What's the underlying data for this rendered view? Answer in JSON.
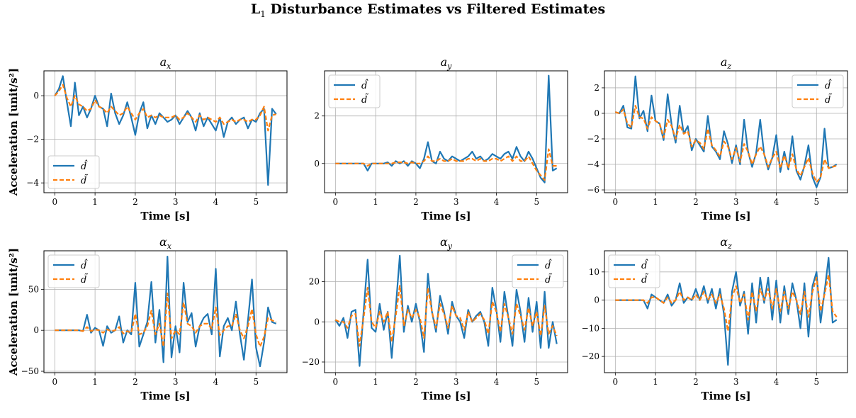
{
  "title": {
    "prefix": "L",
    "sub": "1",
    "rest": " Disturbance Estimates vs Filtered Estimates"
  },
  "colors": {
    "estimate": "#1f77b4",
    "filtered": "#ff7f0e",
    "grid": "#b0b0b0"
  },
  "chart_data": [
    {
      "type": "line",
      "title": {
        "base": "a",
        "sub": "x"
      },
      "xlabel": "Time [s]",
      "ylabel": "Acceleration [unit/s²]",
      "xlim": [
        -0.27,
        5.77
      ],
      "ylim": [
        -4.45,
        1.14
      ],
      "xticks": [
        0,
        1,
        2,
        3,
        4,
        5
      ],
      "yticks": [
        -4,
        -2,
        0
      ],
      "grid": true,
      "legend": "lower-left",
      "x_start": 0,
      "x_step": 0.1,
      "series": [
        {
          "name": "d̂",
          "style": "solid",
          "values": [
            0,
            0.3,
            0.9,
            -0.3,
            -1.4,
            0.6,
            -0.9,
            -0.5,
            -1.0,
            -0.6,
            0.0,
            -0.5,
            -0.6,
            -1.4,
            0.1,
            -0.8,
            -1.3,
            -0.9,
            -0.3,
            -1.0,
            -1.8,
            -0.8,
            -0.3,
            -1.5,
            -0.9,
            -1.3,
            -0.8,
            -1.0,
            -1.2,
            -1.1,
            -0.9,
            -1.3,
            -1.0,
            -0.7,
            -1.0,
            -1.6,
            -0.8,
            -1.4,
            -1.0,
            -1.3,
            -1.6,
            -1.0,
            -1.9,
            -1.2,
            -1.0,
            -1.3,
            -1.1,
            -1.0,
            -1.5,
            -1.1,
            -1.2,
            -0.8,
            -0.6,
            -4.1,
            -0.6,
            -0.85
          ]
        },
        {
          "name": "d̃",
          "style": "dashed",
          "values": [
            0,
            0.2,
            0.5,
            -0.1,
            -0.5,
            0.0,
            -0.4,
            -0.5,
            -0.7,
            -0.6,
            -0.2,
            -0.5,
            -0.6,
            -0.8,
            -0.5,
            -0.7,
            -0.9,
            -0.8,
            -0.5,
            -0.8,
            -1.1,
            -0.8,
            -0.6,
            -1.0,
            -0.9,
            -1.0,
            -0.9,
            -1.0,
            -1.0,
            -1.0,
            -0.9,
            -1.1,
            -1.0,
            -0.8,
            -1.0,
            -1.2,
            -0.9,
            -1.1,
            -1.0,
            -1.1,
            -1.2,
            -1.0,
            -1.3,
            -1.2,
            -1.1,
            -1.2,
            -1.1,
            -1.1,
            -1.2,
            -1.1,
            -1.1,
            -0.9,
            -0.5,
            -1.6,
            -0.9,
            -0.85
          ]
        }
      ]
    },
    {
      "type": "line",
      "title": {
        "base": "a",
        "sub": "y"
      },
      "xlabel": "Time [s]",
      "ylabel": "",
      "xlim": [
        -0.27,
        5.77
      ],
      "ylim": [
        -1.23,
        3.9
      ],
      "xticks": [
        0,
        1,
        2,
        3,
        4,
        5
      ],
      "yticks": [
        0,
        2
      ],
      "grid": true,
      "legend": "upper-left",
      "x_start": 0,
      "x_step": 0.1,
      "series": [
        {
          "name": "d̂",
          "style": "solid",
          "values": [
            0,
            0,
            0,
            0,
            0,
            0,
            0,
            0,
            -0.3,
            0,
            0,
            0,
            0,
            0.05,
            -0.1,
            0.1,
            0,
            0.1,
            -0.1,
            0.1,
            0,
            -0.2,
            0.2,
            0.9,
            0.1,
            0.0,
            0.5,
            0.2,
            0.1,
            0.3,
            0.2,
            0.1,
            0.2,
            0.3,
            0.5,
            0.2,
            0.3,
            0.1,
            0.2,
            0.4,
            0.3,
            0.2,
            0.4,
            0.5,
            0.2,
            0.7,
            0.3,
            0.1,
            0.5,
            0.2,
            -0.2,
            -0.6,
            -0.8,
            3.7,
            -0.3,
            -0.2
          ]
        },
        {
          "name": "d̃",
          "style": "dashed",
          "values": [
            0,
            0,
            0,
            0,
            0,
            0,
            0,
            0,
            -0.1,
            0,
            0,
            0,
            0,
            0,
            0,
            0.05,
            0.05,
            0.05,
            0,
            0.05,
            0,
            0,
            0.1,
            0.3,
            0.1,
            0.1,
            0.2,
            0.1,
            0.1,
            0.2,
            0.1,
            0.1,
            0.1,
            0.2,
            0.2,
            0.1,
            0.2,
            0.1,
            0.1,
            0.2,
            0.2,
            0.1,
            0.2,
            0.3,
            0.1,
            0.3,
            0.1,
            0.1,
            0.3,
            0.0,
            -0.3,
            -0.5,
            -0.7,
            0.6,
            -0.1,
            -0.1
          ]
        }
      ]
    },
    {
      "type": "line",
      "title": {
        "base": "a",
        "sub": "z"
      },
      "xlabel": "Time [s]",
      "ylabel": "",
      "xlim": [
        -0.27,
        5.77
      ],
      "ylim": [
        -6.22,
        3.33
      ],
      "xticks": [
        0,
        1,
        2,
        3,
        4,
        5
      ],
      "yticks": [
        -6,
        -4,
        -2,
        0,
        2
      ],
      "grid": true,
      "legend": "upper-right",
      "x_start": 0,
      "x_step": 0.1,
      "series": [
        {
          "name": "d̂",
          "style": "solid",
          "values": [
            0.1,
            0.0,
            0.6,
            -1.1,
            -1.2,
            2.9,
            -0.4,
            0.2,
            -1.4,
            1.4,
            -0.6,
            -0.8,
            -2.1,
            1.5,
            -0.9,
            -2.3,
            0.6,
            -1.6,
            -1.0,
            -2.9,
            -2.0,
            -2.5,
            -3.0,
            -0.2,
            -2.6,
            -3.0,
            -3.6,
            -1.4,
            -2.4,
            -3.9,
            -2.5,
            -4.0,
            -0.5,
            -3.0,
            -4.2,
            -3.1,
            -0.5,
            -3.2,
            -4.4,
            -3.5,
            -1.7,
            -4.6,
            -3.0,
            -4.4,
            -1.8,
            -4.5,
            -5.2,
            -4.1,
            -2.5,
            -5.0,
            -5.8,
            -5.0,
            -1.2,
            -4.3,
            -4.2,
            -4.0
          ]
        },
        {
          "name": "d̃",
          "style": "dashed",
          "values": [
            0.1,
            0.0,
            0.3,
            -0.8,
            -1.1,
            0.6,
            -0.3,
            -0.4,
            -1.2,
            -0.3,
            -0.6,
            -0.8,
            -1.9,
            -0.5,
            -1.0,
            -2.0,
            -0.9,
            -1.6,
            -1.4,
            -2.6,
            -2.1,
            -2.3,
            -2.8,
            -1.2,
            -2.5,
            -2.9,
            -3.4,
            -2.2,
            -2.6,
            -3.6,
            -2.7,
            -3.8,
            -2.4,
            -3.0,
            -4.0,
            -3.2,
            -2.6,
            -3.2,
            -4.2,
            -3.5,
            -3.0,
            -4.3,
            -3.3,
            -4.3,
            -3.2,
            -4.4,
            -4.9,
            -4.2,
            -3.5,
            -4.7,
            -5.4,
            -5.0,
            -3.6,
            -4.3,
            -4.2,
            -4.1
          ]
        }
      ]
    },
    {
      "type": "line",
      "title": {
        "base": "α",
        "sub": "x"
      },
      "xlabel": "Time [s]",
      "ylabel": "Acceleration [unit/s²]",
      "xlim": [
        -0.27,
        5.77
      ],
      "ylim": [
        -51.7,
        97
      ],
      "xticks": [
        0,
        1,
        2,
        3,
        4,
        5
      ],
      "yticks": [
        -50,
        0,
        50
      ],
      "grid": true,
      "legend": "upper-left",
      "x_start": 0,
      "x_step": 0.1,
      "series": [
        {
          "name": "d̂",
          "style": "solid",
          "values": [
            0,
            0,
            0,
            0,
            0,
            0,
            0,
            -1,
            19,
            -3,
            3,
            0,
            -19,
            5,
            -3,
            0,
            17,
            -15,
            0,
            -5,
            58,
            -20,
            -5,
            10,
            59,
            -15,
            25,
            -39,
            90,
            -33,
            5,
            -27,
            58,
            10,
            21,
            -20,
            5,
            15,
            20,
            -5,
            75,
            -32,
            5,
            15,
            0,
            35,
            -5,
            -36,
            12,
            62,
            -21,
            -44,
            -15,
            28,
            10,
            8
          ]
        },
        {
          "name": "d̃",
          "style": "dashed",
          "values": [
            0,
            0,
            0,
            0,
            0,
            0,
            0,
            -1,
            4,
            -1,
            1,
            0,
            -3,
            1,
            -1,
            0,
            4,
            -4,
            -1,
            -3,
            20,
            -5,
            -3,
            5,
            24,
            -5,
            8,
            -20,
            45,
            -10,
            0,
            -5,
            34,
            8,
            5,
            -3,
            5,
            8,
            8,
            2,
            28,
            -6,
            0,
            5,
            5,
            20,
            0,
            -10,
            5,
            26,
            -5,
            -20,
            -8,
            15,
            12,
            10
          ]
        }
      ]
    },
    {
      "type": "line",
      "title": {
        "base": "α",
        "sub": "y"
      },
      "xlabel": "Time [s]",
      "ylabel": "",
      "xlim": [
        -0.27,
        5.77
      ],
      "ylim": [
        -25.3,
        35.4
      ],
      "xticks": [
        0,
        1,
        2,
        3,
        4,
        5
      ],
      "yticks": [
        -20,
        0,
        20
      ],
      "grid": true,
      "legend": "upper-right",
      "x_start": 0,
      "x_step": 0.1,
      "series": [
        {
          "name": "d̂",
          "style": "solid",
          "values": [
            1,
            -2,
            2,
            -8,
            5,
            6,
            -22,
            5,
            31,
            -3,
            -5,
            9,
            -4,
            5,
            -18,
            7,
            33,
            -5,
            8,
            0,
            9,
            0,
            -15,
            24,
            5,
            -5,
            13,
            5,
            -6,
            10,
            3,
            0,
            -8,
            6,
            0,
            3,
            5,
            0,
            -12,
            17,
            6,
            -10,
            15,
            2,
            -12,
            16,
            5,
            -10,
            12,
            -5,
            10,
            -13,
            15,
            -13,
            0,
            -11
          ]
        },
        {
          "name": "d̃",
          "style": "dashed",
          "values": [
            1,
            0,
            0,
            -3,
            3,
            4,
            -12,
            2,
            17,
            0,
            -3,
            5,
            0,
            5,
            -10,
            3,
            18,
            -2,
            6,
            2,
            6,
            2,
            -8,
            17,
            5,
            -3,
            9,
            4,
            -3,
            8,
            3,
            2,
            -4,
            5,
            0,
            2,
            4,
            1,
            -6,
            10,
            5,
            -5,
            9,
            2,
            -6,
            9,
            3,
            -4,
            7,
            -2,
            5,
            -7,
            8,
            -6,
            -2,
            -7
          ]
        }
      ]
    },
    {
      "type": "line",
      "title": {
        "base": "α",
        "sub": "z"
      },
      "xlabel": "Time [s]",
      "ylabel": "",
      "xlim": [
        -0.27,
        5.77
      ],
      "ylim": [
        -25.75,
        17.5
      ],
      "xticks": [
        0,
        1,
        2,
        3,
        4,
        5
      ],
      "yticks": [
        -20,
        -10,
        0,
        10
      ],
      "grid": true,
      "legend": "upper-left",
      "x_start": 0,
      "x_step": 0.1,
      "series": [
        {
          "name": "d̂",
          "style": "solid",
          "values": [
            0,
            0,
            0,
            0,
            0,
            0,
            0,
            0,
            -3,
            2,
            1,
            0,
            -1,
            2,
            -2,
            0,
            6,
            -1,
            1,
            0,
            4,
            0,
            5,
            -1,
            4,
            -3,
            4,
            -5,
            -23,
            3,
            10,
            -2,
            3,
            -12,
            6,
            -8,
            8,
            -1,
            8,
            -7,
            7,
            -8,
            5,
            -5,
            6,
            0,
            -10,
            6,
            -13,
            5,
            10,
            -8,
            3,
            15,
            -8,
            -7
          ]
        },
        {
          "name": "d̃",
          "style": "dashed",
          "values": [
            0,
            0,
            0,
            0,
            0,
            0,
            0,
            0,
            -1,
            1,
            1,
            0,
            -1,
            1,
            -1,
            0,
            3,
            0,
            1,
            0,
            2,
            0,
            3,
            0,
            2,
            -1,
            2,
            -3,
            -11,
            1,
            5,
            -1,
            2,
            -7,
            3,
            -4,
            4,
            0,
            4,
            -3,
            4,
            -4,
            3,
            -3,
            3,
            0,
            -5,
            3,
            -6,
            3,
            8,
            -4,
            2,
            9,
            -4,
            -6
          ]
        }
      ]
    }
  ]
}
